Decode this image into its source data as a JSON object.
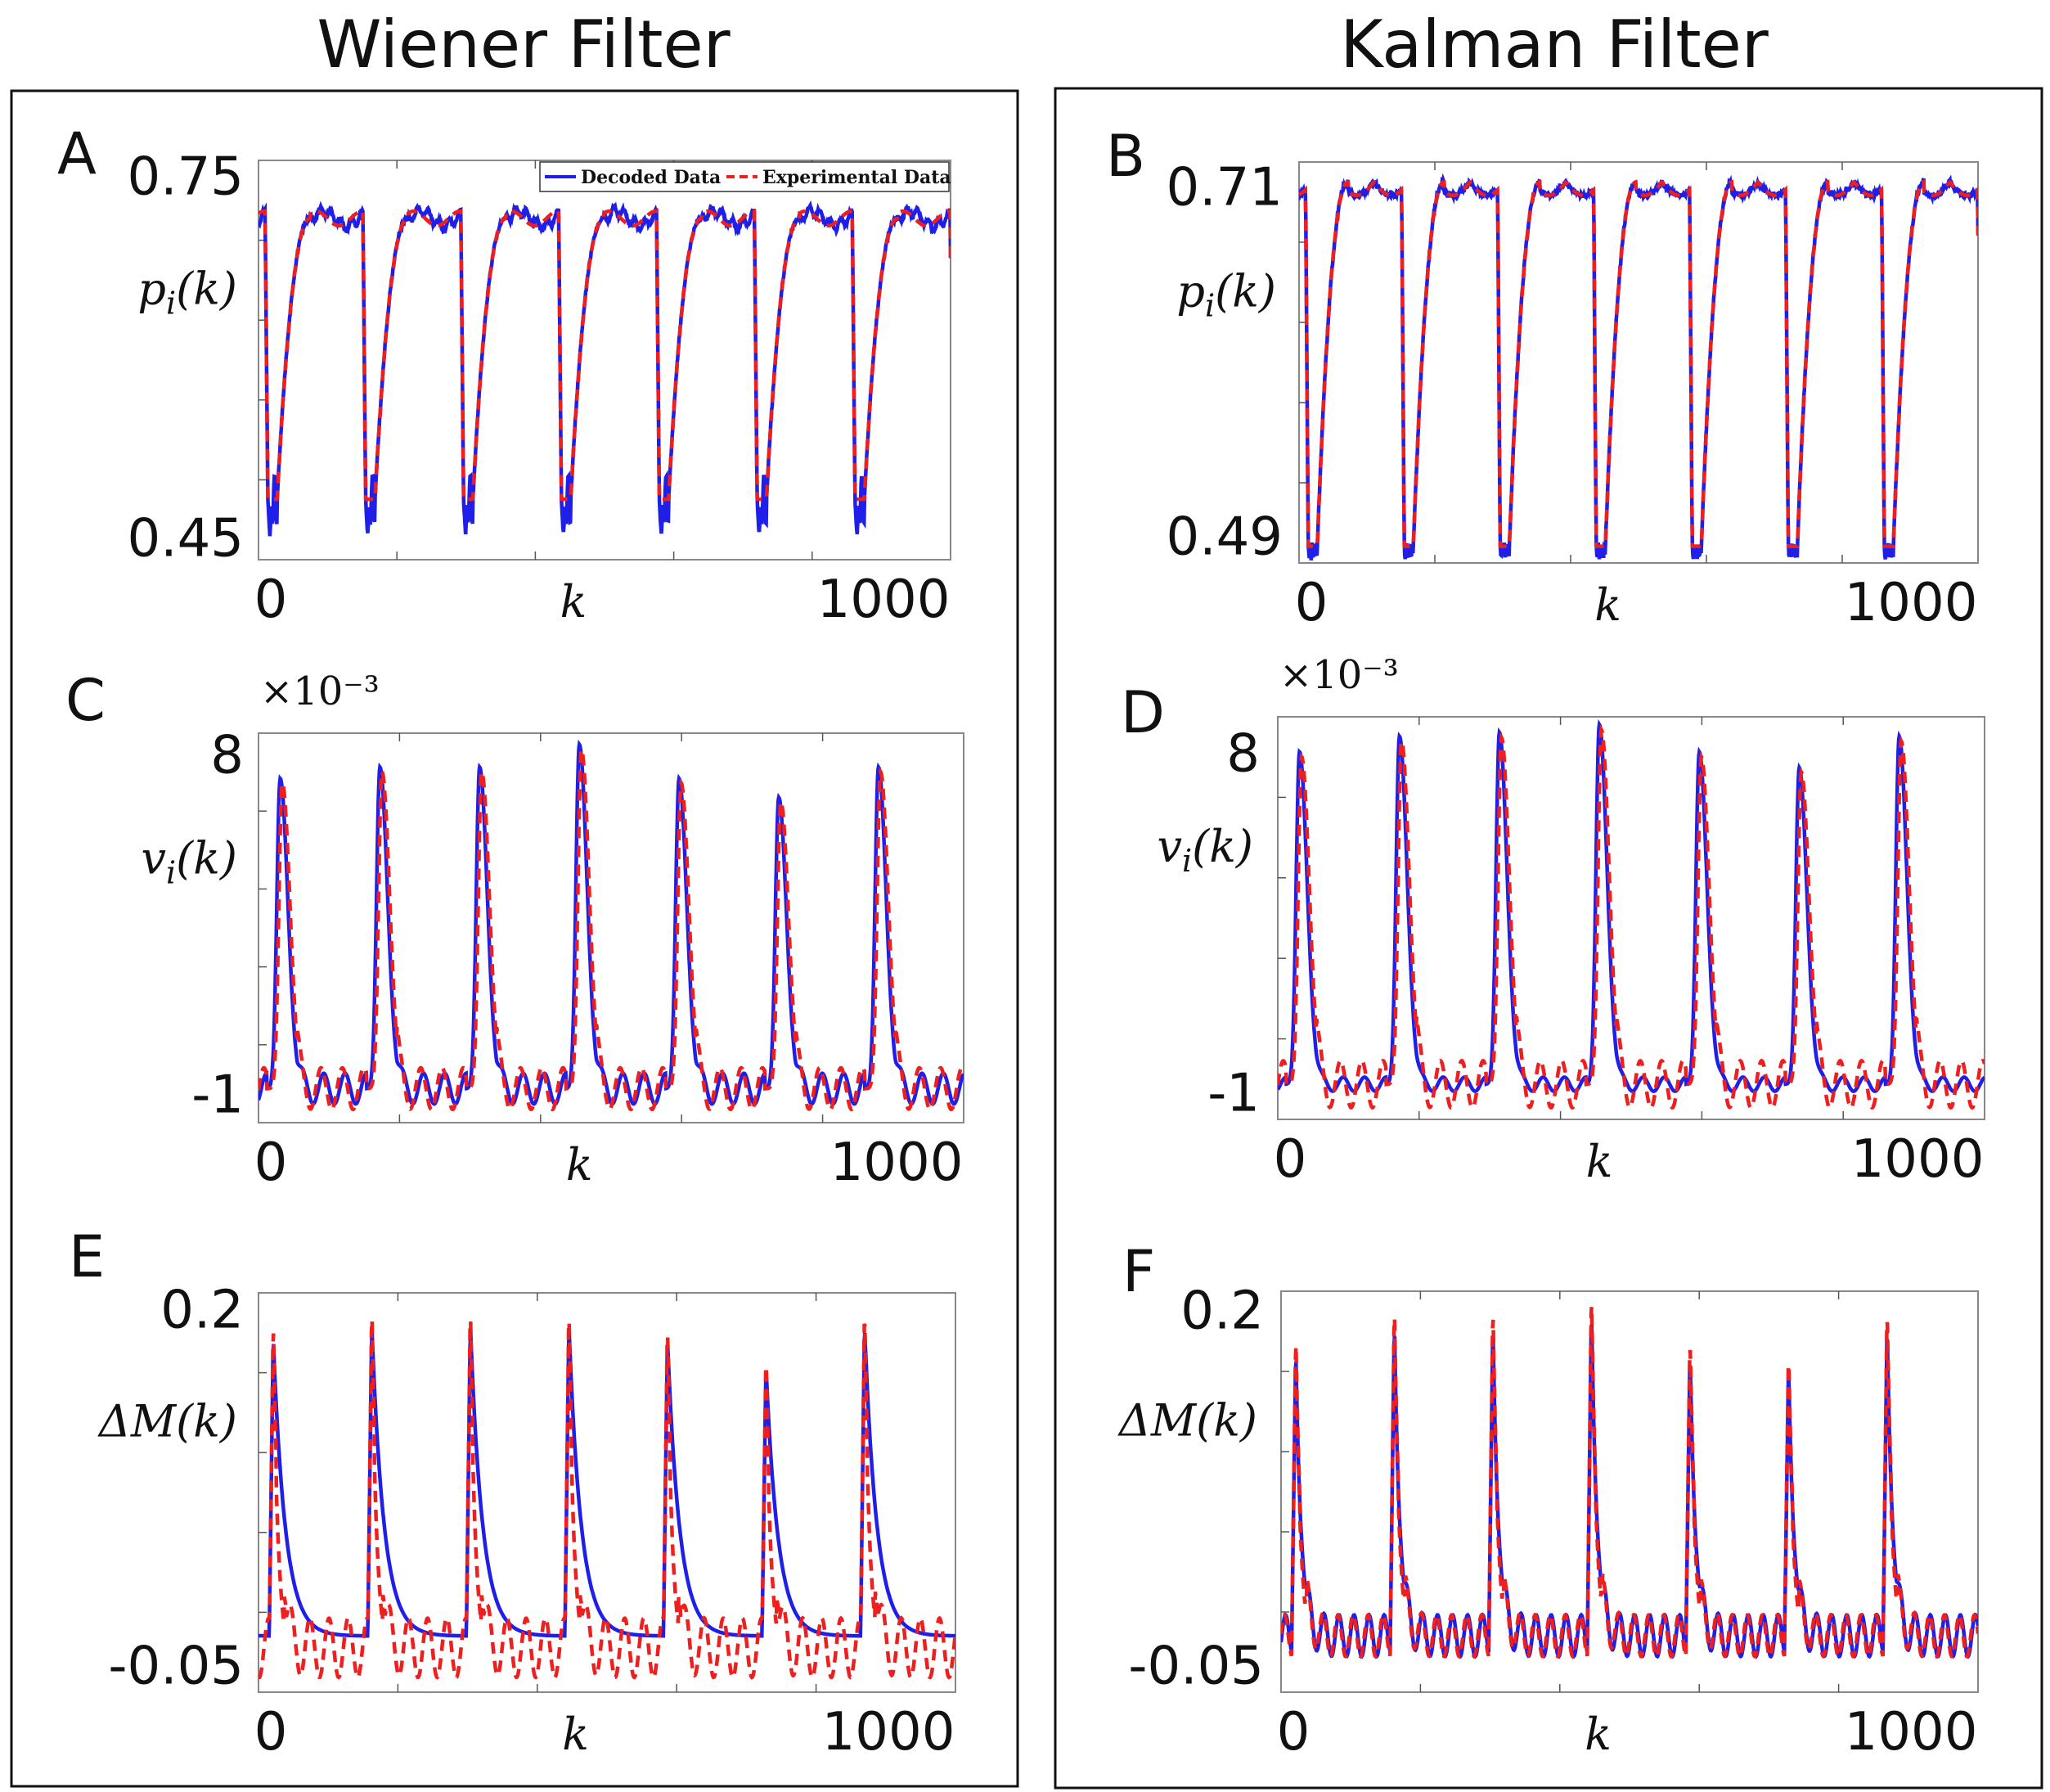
{
  "column_titles": {
    "left": "Wiener Filter",
    "right": "Kalman Filter"
  },
  "legend": {
    "decoded": "Decoded Data",
    "experimental": "Experimental Data"
  },
  "colors": {
    "decoded": "#1f1fe8",
    "experimental": "#ee1f1f",
    "frame": "#111111",
    "grid_tick": "#555555"
  },
  "chart_data": [
    {
      "id": "A",
      "type": "line",
      "letter": "A",
      "ylabel_base": "p",
      "ylabel_sub": "i",
      "ylabel_arg": "(k)",
      "xlabel": "k",
      "x_ticks": [
        "0",
        "1000"
      ],
      "y_ticks": [
        "0.75",
        "0.45"
      ],
      "exponent": "",
      "ylim": [
        0.43,
        0.76
      ],
      "xlim": [
        -20,
        1020
      ],
      "kind": "position",
      "high": 0.712,
      "low": 0.48,
      "dip_min_decoded": 0.45,
      "periods": 7,
      "filter": "wiener",
      "series": [
        {
          "name": "Decoded Data"
        },
        {
          "name": "Experimental Data"
        }
      ],
      "legend_location": "top-right"
    },
    {
      "id": "B",
      "type": "line",
      "letter": "B",
      "ylabel_base": "p",
      "ylabel_sub": "i",
      "ylabel_arg": "(k)",
      "xlabel": "k",
      "x_ticks": [
        "0",
        "1000"
      ],
      "y_ticks": [
        "0.71",
        "0.49"
      ],
      "exponent": "",
      "ylim": [
        0.48,
        0.72
      ],
      "xlim": [
        -20,
        1020
      ],
      "kind": "position",
      "high": 0.708,
      "low": 0.49,
      "dip_min_decoded": 0.487,
      "periods": 7,
      "filter": "kalman",
      "series": [
        {
          "name": "Decoded Data"
        },
        {
          "name": "Experimental Data"
        }
      ]
    },
    {
      "id": "C",
      "type": "line",
      "letter": "C",
      "ylabel_base": "v",
      "ylabel_sub": "i",
      "ylabel_arg": "(k)",
      "xlabel": "k",
      "x_ticks": [
        "0",
        "1000"
      ],
      "y_ticks": [
        "8",
        "-1"
      ],
      "exponent": "×10⁻³",
      "ylim": [
        -1.5,
        8.8
      ],
      "xlim": [
        -20,
        1020
      ],
      "kind": "velocity",
      "peaks": [
        7.6,
        7.9,
        7.9,
        8.5,
        7.6,
        7.1,
        7.9
      ],
      "periods": 7,
      "filter": "wiener",
      "series": [
        {
          "name": "Decoded Data"
        },
        {
          "name": "Experimental Data"
        }
      ]
    },
    {
      "id": "D",
      "type": "line",
      "letter": "D",
      "ylabel_base": "v",
      "ylabel_sub": "i",
      "ylabel_arg": "(k)",
      "xlabel": "k",
      "x_ticks": [
        "0",
        "1000"
      ],
      "y_ticks": [
        "8",
        "-1"
      ],
      "exponent": "×10⁻³",
      "ylim": [
        -1.5,
        8.8
      ],
      "xlim": [
        -20,
        1020
      ],
      "kind": "velocity",
      "peaks": [
        7.9,
        8.3,
        8.4,
        8.6,
        7.9,
        7.5,
        8.3
      ],
      "periods": 7,
      "filter": "kalman",
      "series": [
        {
          "name": "Decoded Data"
        },
        {
          "name": "Experimental Data"
        }
      ]
    },
    {
      "id": "E",
      "type": "line",
      "letter": "E",
      "ylabel_base": "ΔM",
      "ylabel_sub": "",
      "ylabel_arg": "(k)",
      "xlabel": "k",
      "x_ticks": [
        "0",
        "1000"
      ],
      "y_ticks": [
        "0.2",
        "-0.05"
      ],
      "exponent": "",
      "ylim": [
        -0.06,
        0.21
      ],
      "xlim": [
        -20,
        1020
      ],
      "kind": "delta",
      "peaks": [
        0.19,
        0.2,
        0.2,
        0.2,
        0.19,
        0.17,
        0.2
      ],
      "periods": 7,
      "filter": "wiener",
      "series": [
        {
          "name": "Decoded Data"
        },
        {
          "name": "Experimental Data"
        }
      ]
    },
    {
      "id": "F",
      "type": "line",
      "letter": "F",
      "ylabel_base": "ΔM",
      "ylabel_sub": "",
      "ylabel_arg": "(k)",
      "xlabel": "k",
      "x_ticks": [
        "0",
        "1000"
      ],
      "y_ticks": [
        "0.2",
        "-0.05"
      ],
      "exponent": "",
      "ylim": [
        -0.06,
        0.21
      ],
      "xlim": [
        -20,
        1020
      ],
      "kind": "delta",
      "peaks": [
        0.18,
        0.2,
        0.2,
        0.21,
        0.18,
        0.17,
        0.2
      ],
      "periods": 7,
      "filter": "kalman",
      "series": [
        {
          "name": "Decoded Data"
        },
        {
          "name": "Experimental Data"
        }
      ]
    }
  ]
}
